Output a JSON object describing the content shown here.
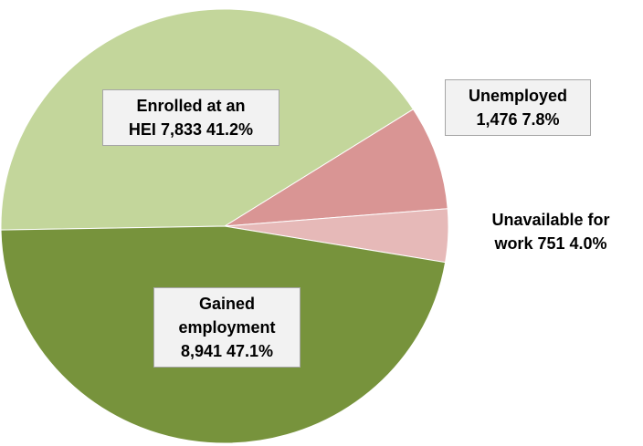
{
  "chart_data": {
    "type": "pie",
    "categories": [
      "Enrolled at an\nHEI",
      "Unemployed",
      "Unavailable for\nwork",
      "Gained\nemployment"
    ],
    "values": [
      7833,
      1476,
      751,
      8941
    ],
    "value_labels": [
      "7,833",
      "1,476",
      "751",
      "8,941"
    ],
    "percent_labels": [
      "41.2%",
      "7.8%",
      "4.0%",
      "47.1%"
    ],
    "colors": [
      "#c3d69b",
      "#d99594",
      "#e6b9b8",
      "#77933c"
    ]
  }
}
